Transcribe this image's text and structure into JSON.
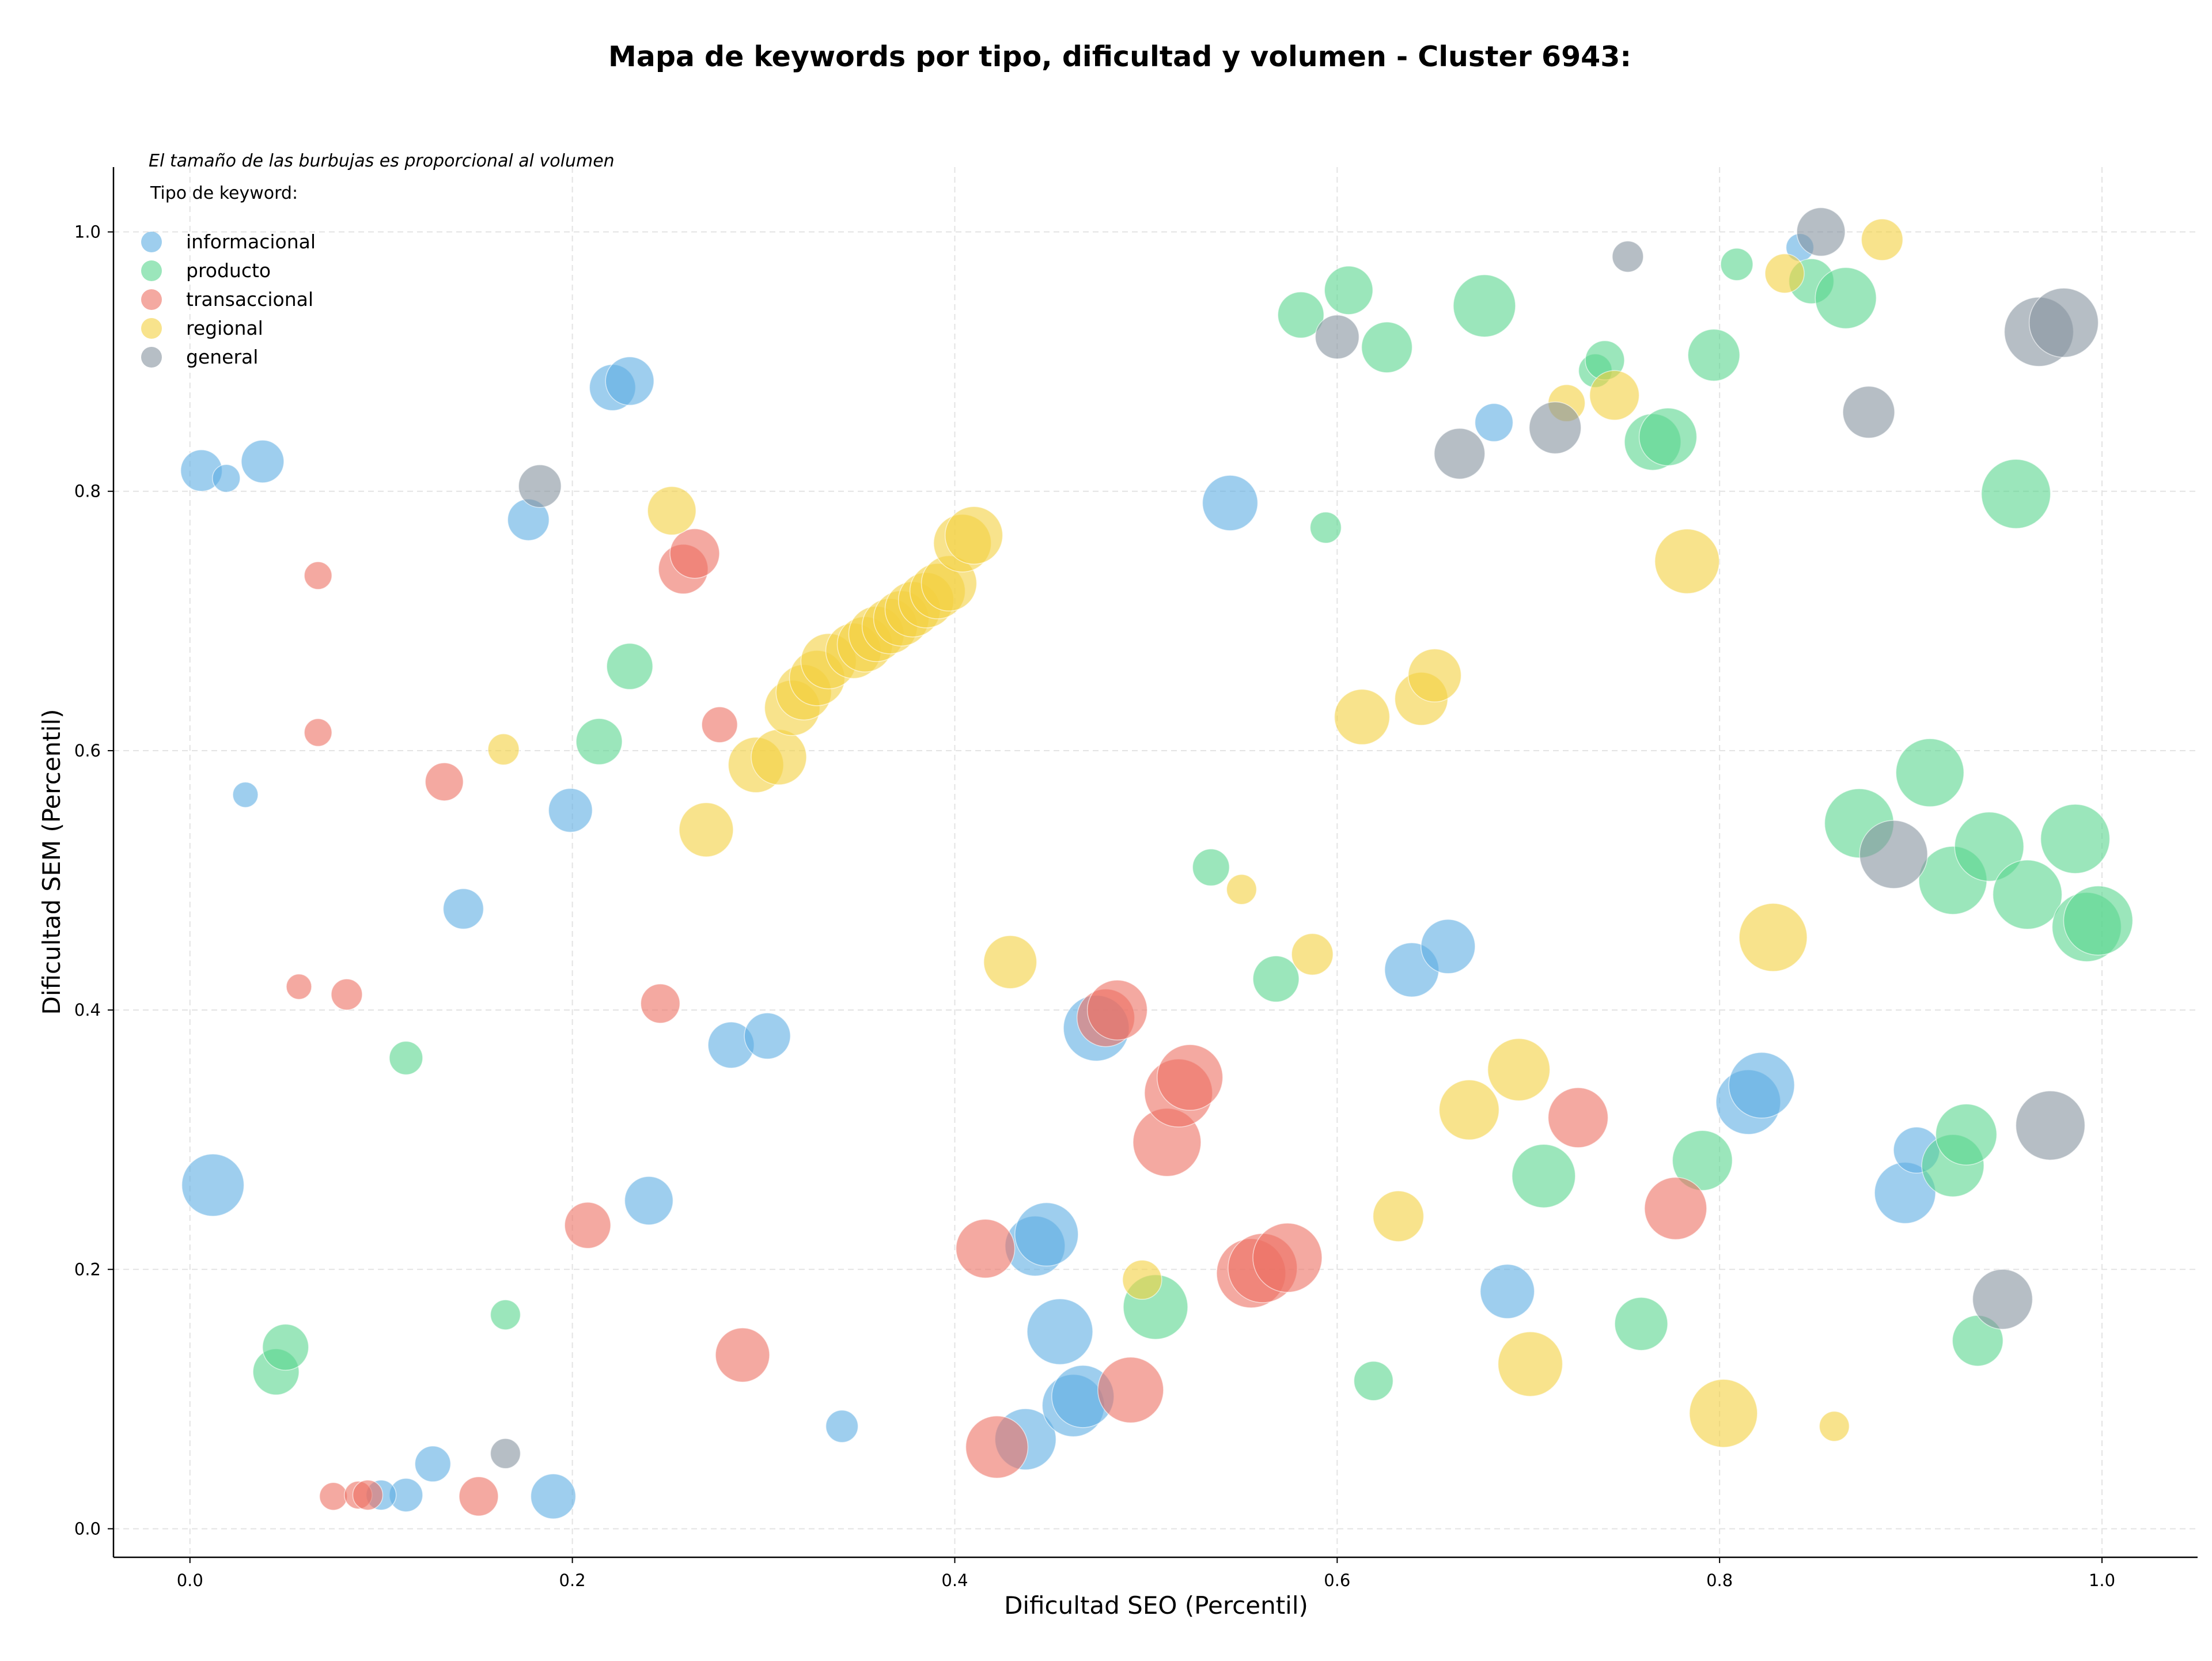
{
  "chart_data": {
    "type": "scatter",
    "title": "Mapa de keywords por tipo, dificultad y volumen - Cluster 6943:",
    "xlabel": "Dificultad SEO (Percentil)",
    "ylabel": "Dificultad SEM (Percentil)",
    "xlim": [
      -0.04,
      1.05
    ],
    "ylim": [
      -0.022,
      1.05
    ],
    "xticks": [
      "0.0",
      "0.2",
      "0.4",
      "0.6",
      "0.8",
      "1.0"
    ],
    "yticks": [
      "0.0",
      "0.2",
      "0.4",
      "0.6",
      "0.8",
      "1.0"
    ],
    "grid": true,
    "note": "El tamaño de las burbujas es proporcional al volumen",
    "legend_title": "Tipo de keyword:",
    "legend_position": "top-left",
    "series": [
      {
        "name": "informacional",
        "color": "#5dade2",
        "points": [
          {
            "x": 0.006,
            "y": 0.816,
            "r": 36
          },
          {
            "x": 0.019,
            "y": 0.81,
            "r": 24
          },
          {
            "x": 0.038,
            "y": 0.823,
            "r": 37
          },
          {
            "x": 0.029,
            "y": 0.566,
            "r": 22
          },
          {
            "x": 0.012,
            "y": 0.265,
            "r": 54
          },
          {
            "x": 0.113,
            "y": 0.026,
            "r": 29
          },
          {
            "x": 0.127,
            "y": 0.05,
            "r": 31
          },
          {
            "x": 0.1,
            "y": 0.026,
            "r": 26
          },
          {
            "x": 0.143,
            "y": 0.478,
            "r": 35
          },
          {
            "x": 0.177,
            "y": 0.778,
            "r": 36
          },
          {
            "x": 0.19,
            "y": 0.025,
            "r": 39
          },
          {
            "x": 0.199,
            "y": 0.554,
            "r": 38
          },
          {
            "x": 0.221,
            "y": 0.88,
            "r": 40
          },
          {
            "x": 0.23,
            "y": 0.885,
            "r": 42
          },
          {
            "x": 0.24,
            "y": 0.253,
            "r": 42
          },
          {
            "x": 0.283,
            "y": 0.373,
            "r": 40
          },
          {
            "x": 0.302,
            "y": 0.38,
            "r": 40
          },
          {
            "x": 0.341,
            "y": 0.079,
            "r": 28
          },
          {
            "x": 0.437,
            "y": 0.069,
            "r": 53
          },
          {
            "x": 0.442,
            "y": 0.218,
            "r": 52
          },
          {
            "x": 0.448,
            "y": 0.227,
            "r": 55
          },
          {
            "x": 0.455,
            "y": 0.152,
            "r": 57
          },
          {
            "x": 0.462,
            "y": 0.095,
            "r": 54
          },
          {
            "x": 0.467,
            "y": 0.102,
            "r": 54
          },
          {
            "x": 0.474,
            "y": 0.386,
            "r": 57
          },
          {
            "x": 0.544,
            "y": 0.791,
            "r": 48
          },
          {
            "x": 0.639,
            "y": 0.431,
            "r": 47
          },
          {
            "x": 0.658,
            "y": 0.449,
            "r": 47
          },
          {
            "x": 0.682,
            "y": 0.853,
            "r": 33
          },
          {
            "x": 0.689,
            "y": 0.183,
            "r": 47
          },
          {
            "x": 0.815,
            "y": 0.329,
            "r": 56
          },
          {
            "x": 0.822,
            "y": 0.342,
            "r": 57
          },
          {
            "x": 0.842,
            "y": 0.988,
            "r": 24
          },
          {
            "x": 0.897,
            "y": 0.259,
            "r": 53
          },
          {
            "x": 0.903,
            "y": 0.292,
            "r": 40
          }
        ]
      },
      {
        "name": "producto",
        "color": "#58d68d",
        "points": [
          {
            "x": 0.045,
            "y": 0.121,
            "r": 40
          },
          {
            "x": 0.05,
            "y": 0.14,
            "r": 40
          },
          {
            "x": 0.113,
            "y": 0.363,
            "r": 29
          },
          {
            "x": 0.165,
            "y": 0.165,
            "r": 26
          },
          {
            "x": 0.214,
            "y": 0.607,
            "r": 40
          },
          {
            "x": 0.23,
            "y": 0.665,
            "r": 40
          },
          {
            "x": 0.505,
            "y": 0.171,
            "r": 56
          },
          {
            "x": 0.534,
            "y": 0.51,
            "r": 32
          },
          {
            "x": 0.568,
            "y": 0.424,
            "r": 40
          },
          {
            "x": 0.581,
            "y": 0.936,
            "r": 40
          },
          {
            "x": 0.594,
            "y": 0.772,
            "r": 27
          },
          {
            "x": 0.606,
            "y": 0.955,
            "r": 42
          },
          {
            "x": 0.619,
            "y": 0.114,
            "r": 34
          },
          {
            "x": 0.626,
            "y": 0.911,
            "r": 44
          },
          {
            "x": 0.677,
            "y": 0.943,
            "r": 54
          },
          {
            "x": 0.708,
            "y": 0.272,
            "r": 55
          },
          {
            "x": 0.735,
            "y": 0.893,
            "r": 29
          },
          {
            "x": 0.74,
            "y": 0.901,
            "r": 34
          },
          {
            "x": 0.759,
            "y": 0.158,
            "r": 46
          },
          {
            "x": 0.765,
            "y": 0.838,
            "r": 49
          },
          {
            "x": 0.773,
            "y": 0.842,
            "r": 50
          },
          {
            "x": 0.791,
            "y": 0.284,
            "r": 52
          },
          {
            "x": 0.797,
            "y": 0.905,
            "r": 45
          },
          {
            "x": 0.809,
            "y": 0.975,
            "r": 28
          },
          {
            "x": 0.848,
            "y": 0.962,
            "r": 39
          },
          {
            "x": 0.866,
            "y": 0.949,
            "r": 53
          },
          {
            "x": 0.873,
            "y": 0.544,
            "r": 60
          },
          {
            "x": 0.91,
            "y": 0.583,
            "r": 59
          },
          {
            "x": 0.922,
            "y": 0.5,
            "r": 59
          },
          {
            "x": 0.922,
            "y": 0.28,
            "r": 54
          },
          {
            "x": 0.929,
            "y": 0.304,
            "r": 53
          },
          {
            "x": 0.935,
            "y": 0.145,
            "r": 44
          },
          {
            "x": 0.941,
            "y": 0.526,
            "r": 60
          },
          {
            "x": 0.955,
            "y": 0.798,
            "r": 60
          },
          {
            "x": 0.961,
            "y": 0.489,
            "r": 60
          },
          {
            "x": 0.986,
            "y": 0.532,
            "r": 60
          },
          {
            "x": 0.992,
            "y": 0.464,
            "r": 60
          },
          {
            "x": 0.998,
            "y": 0.469,
            "r": 60
          }
        ]
      },
      {
        "name": "transaccional",
        "color": "#ec7063",
        "points": [
          {
            "x": 0.067,
            "y": 0.735,
            "r": 24
          },
          {
            "x": 0.067,
            "y": 0.614,
            "r": 24
          },
          {
            "x": 0.057,
            "y": 0.418,
            "r": 22
          },
          {
            "x": 0.082,
            "y": 0.412,
            "r": 27
          },
          {
            "x": 0.075,
            "y": 0.025,
            "r": 24
          },
          {
            "x": 0.088,
            "y": 0.026,
            "r": 24
          },
          {
            "x": 0.093,
            "y": 0.026,
            "r": 26
          },
          {
            "x": 0.133,
            "y": 0.576,
            "r": 33
          },
          {
            "x": 0.151,
            "y": 0.025,
            "r": 34
          },
          {
            "x": 0.208,
            "y": 0.234,
            "r": 40
          },
          {
            "x": 0.246,
            "y": 0.405,
            "r": 34
          },
          {
            "x": 0.258,
            "y": 0.74,
            "r": 43
          },
          {
            "x": 0.264,
            "y": 0.752,
            "r": 43
          },
          {
            "x": 0.277,
            "y": 0.62,
            "r": 31
          },
          {
            "x": 0.289,
            "y": 0.134,
            "r": 47
          },
          {
            "x": 0.416,
            "y": 0.216,
            "r": 51
          },
          {
            "x": 0.422,
            "y": 0.063,
            "r": 54
          },
          {
            "x": 0.479,
            "y": 0.394,
            "r": 50
          },
          {
            "x": 0.485,
            "y": 0.4,
            "r": 52
          },
          {
            "x": 0.492,
            "y": 0.107,
            "r": 57
          },
          {
            "x": 0.511,
            "y": 0.298,
            "r": 59
          },
          {
            "x": 0.517,
            "y": 0.336,
            "r": 59
          },
          {
            "x": 0.523,
            "y": 0.348,
            "r": 57
          },
          {
            "x": 0.555,
            "y": 0.197,
            "r": 60
          },
          {
            "x": 0.561,
            "y": 0.201,
            "r": 60
          },
          {
            "x": 0.574,
            "y": 0.209,
            "r": 60
          },
          {
            "x": 0.726,
            "y": 0.317,
            "r": 52
          },
          {
            "x": 0.777,
            "y": 0.247,
            "r": 54
          }
        ]
      },
      {
        "name": "regional",
        "color": "#f4d03f",
        "points": [
          {
            "x": 0.164,
            "y": 0.601,
            "r": 27
          },
          {
            "x": 0.252,
            "y": 0.785,
            "r": 42
          },
          {
            "x": 0.27,
            "y": 0.539,
            "r": 47
          },
          {
            "x": 0.296,
            "y": 0.589,
            "r": 48
          },
          {
            "x": 0.308,
            "y": 0.595,
            "r": 48
          },
          {
            "x": 0.315,
            "y": 0.633,
            "r": 48
          },
          {
            "x": 0.321,
            "y": 0.645,
            "r": 48
          },
          {
            "x": 0.328,
            "y": 0.656,
            "r": 48
          },
          {
            "x": 0.334,
            "y": 0.669,
            "r": 48
          },
          {
            "x": 0.347,
            "y": 0.677,
            "r": 48
          },
          {
            "x": 0.353,
            "y": 0.682,
            "r": 48
          },
          {
            "x": 0.359,
            "y": 0.69,
            "r": 48
          },
          {
            "x": 0.366,
            "y": 0.696,
            "r": 48
          },
          {
            "x": 0.372,
            "y": 0.702,
            "r": 48
          },
          {
            "x": 0.378,
            "y": 0.709,
            "r": 48
          },
          {
            "x": 0.385,
            "y": 0.716,
            "r": 48
          },
          {
            "x": 0.391,
            "y": 0.723,
            "r": 48
          },
          {
            "x": 0.397,
            "y": 0.729,
            "r": 48
          },
          {
            "x": 0.404,
            "y": 0.76,
            "r": 50
          },
          {
            "x": 0.41,
            "y": 0.766,
            "r": 50
          },
          {
            "x": 0.429,
            "y": 0.437,
            "r": 46
          },
          {
            "x": 0.498,
            "y": 0.192,
            "r": 34
          },
          {
            "x": 0.55,
            "y": 0.493,
            "r": 26
          },
          {
            "x": 0.587,
            "y": 0.443,
            "r": 36
          },
          {
            "x": 0.613,
            "y": 0.626,
            "r": 48
          },
          {
            "x": 0.632,
            "y": 0.241,
            "r": 44
          },
          {
            "x": 0.644,
            "y": 0.64,
            "r": 46
          },
          {
            "x": 0.651,
            "y": 0.658,
            "r": 46
          },
          {
            "x": 0.669,
            "y": 0.323,
            "r": 52
          },
          {
            "x": 0.695,
            "y": 0.354,
            "r": 54
          },
          {
            "x": 0.701,
            "y": 0.127,
            "r": 56
          },
          {
            "x": 0.72,
            "y": 0.868,
            "r": 32
          },
          {
            "x": 0.745,
            "y": 0.874,
            "r": 43
          },
          {
            "x": 0.783,
            "y": 0.746,
            "r": 56
          },
          {
            "x": 0.802,
            "y": 0.089,
            "r": 59
          },
          {
            "x": 0.828,
            "y": 0.456,
            "r": 59
          },
          {
            "x": 0.834,
            "y": 0.968,
            "r": 34
          },
          {
            "x": 0.86,
            "y": 0.079,
            "r": 26
          },
          {
            "x": 0.885,
            "y": 0.994,
            "r": 36
          }
        ]
      },
      {
        "name": "general",
        "color": "#85929e",
        "points": [
          {
            "x": 0.165,
            "y": 0.058,
            "r": 26
          },
          {
            "x": 0.183,
            "y": 0.804,
            "r": 37
          },
          {
            "x": 0.6,
            "y": 0.919,
            "r": 38
          },
          {
            "x": 0.664,
            "y": 0.829,
            "r": 44
          },
          {
            "x": 0.714,
            "y": 0.849,
            "r": 45
          },
          {
            "x": 0.752,
            "y": 0.981,
            "r": 27
          },
          {
            "x": 0.853,
            "y": 1.0,
            "r": 42
          },
          {
            "x": 0.878,
            "y": 0.861,
            "r": 45
          },
          {
            "x": 0.891,
            "y": 0.52,
            "r": 59
          },
          {
            "x": 0.948,
            "y": 0.177,
            "r": 52
          },
          {
            "x": 0.967,
            "y": 0.923,
            "r": 60
          },
          {
            "x": 0.973,
            "y": 0.311,
            "r": 60
          },
          {
            "x": 0.98,
            "y": 0.93,
            "r": 60
          }
        ]
      }
    ]
  }
}
